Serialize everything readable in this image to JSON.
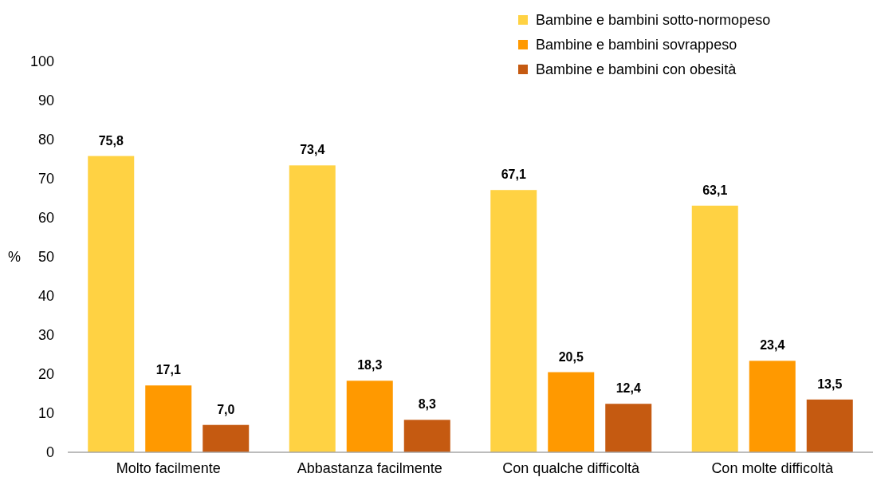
{
  "chart_data": {
    "type": "bar",
    "ylabel": "%",
    "categories": [
      "Molto facilmente",
      "Abbastanza facilmente",
      "Con qualche difficoltà",
      "Con molte difficoltà"
    ],
    "series": [
      {
        "name": "Bambine e bambini sotto-normopeso",
        "color": "#ffd243",
        "values": [
          75.8,
          73.4,
          67.1,
          63.1
        ],
        "value_labels": [
          "75,8",
          "73,4",
          "67,1",
          "63,1"
        ]
      },
      {
        "name": "Bambine e bambini sovrappeso",
        "color": "#ff9900",
        "values": [
          17.1,
          18.3,
          20.5,
          23.4
        ],
        "value_labels": [
          "17,1",
          "18,3",
          "20,5",
          "23,4"
        ]
      },
      {
        "name": "Bambine e bambini con obesità",
        "color": "#c55a11",
        "values": [
          7.0,
          8.3,
          12.4,
          13.5
        ],
        "value_labels": [
          "7,0",
          "8,3",
          "12,4",
          "13,5"
        ]
      }
    ],
    "ylim": [
      0,
      100
    ],
    "yticks": [
      0,
      10,
      20,
      30,
      40,
      50,
      60,
      70,
      80,
      90,
      100
    ],
    "grid": false,
    "legend": "top right"
  }
}
